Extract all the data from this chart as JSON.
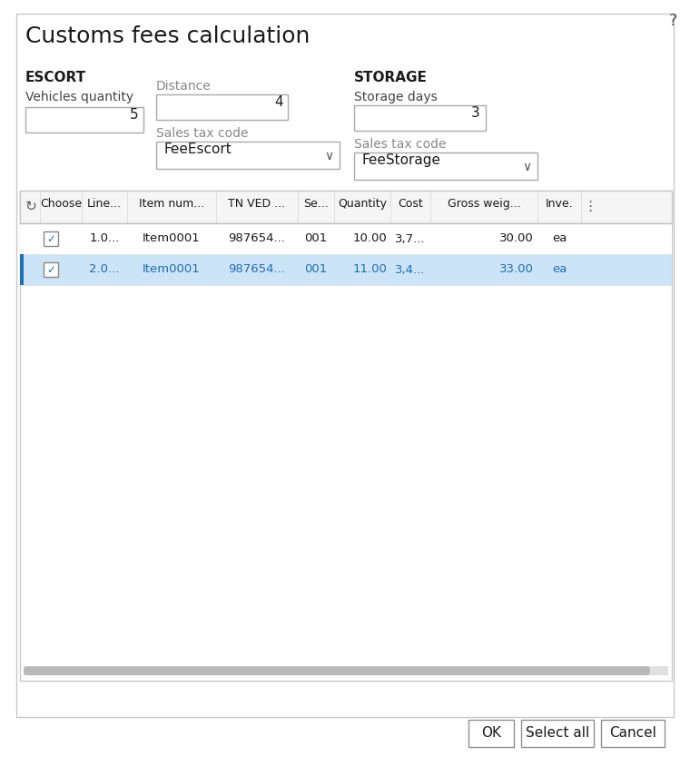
{
  "title": "Customs fees calculation",
  "bg_color": "#ffffff",
  "question_mark": "?",
  "escort_label": "ESCORT",
  "vehicles_qty_label": "Vehicles quantity",
  "vehicles_qty_value": "5",
  "distance_label": "Distance",
  "distance_value": "4",
  "escort_tax_label": "Sales tax code",
  "escort_tax_value": "FeeEscort",
  "storage_label": "STORAGE",
  "storage_days_label": "Storage days",
  "storage_days_value": "3",
  "storage_tax_label": "Sales tax code",
  "storage_tax_value": "FeeStorage",
  "row1_data": [
    "1.0...",
    "Item0001",
    "987654...",
    "001",
    "10.00",
    "3,7...",
    "30.00",
    "ea"
  ],
  "row2_data": [
    "2.0...",
    "Item0001",
    "987654...",
    "001",
    "11.00",
    "3,4...",
    "33.00",
    "ea"
  ],
  "row1_color": "#ffffff",
  "row2_color": "#cce4f7",
  "row2_text_color": "#1e6eb5",
  "row2_left_bar_color": "#1e6eb5",
  "table_border_color": "#c8c8c8",
  "header_bg_color": "#f5f5f5",
  "header_labels": [
    "Choose",
    "Line...",
    "Item num...",
    "TN VED ...",
    "Se...",
    "Quantity",
    "Cost",
    "Gross weig...",
    "Inve."
  ],
  "btn_ok": "OK",
  "btn_select_all": "Select all",
  "btn_cancel": "Cancel",
  "input_border_color": "#aaaaaa",
  "dropdown_border_color": "#aaaaaa",
  "scrollbar_color": "#b8b8b8",
  "dialog_border_color": "#c8c8c8"
}
